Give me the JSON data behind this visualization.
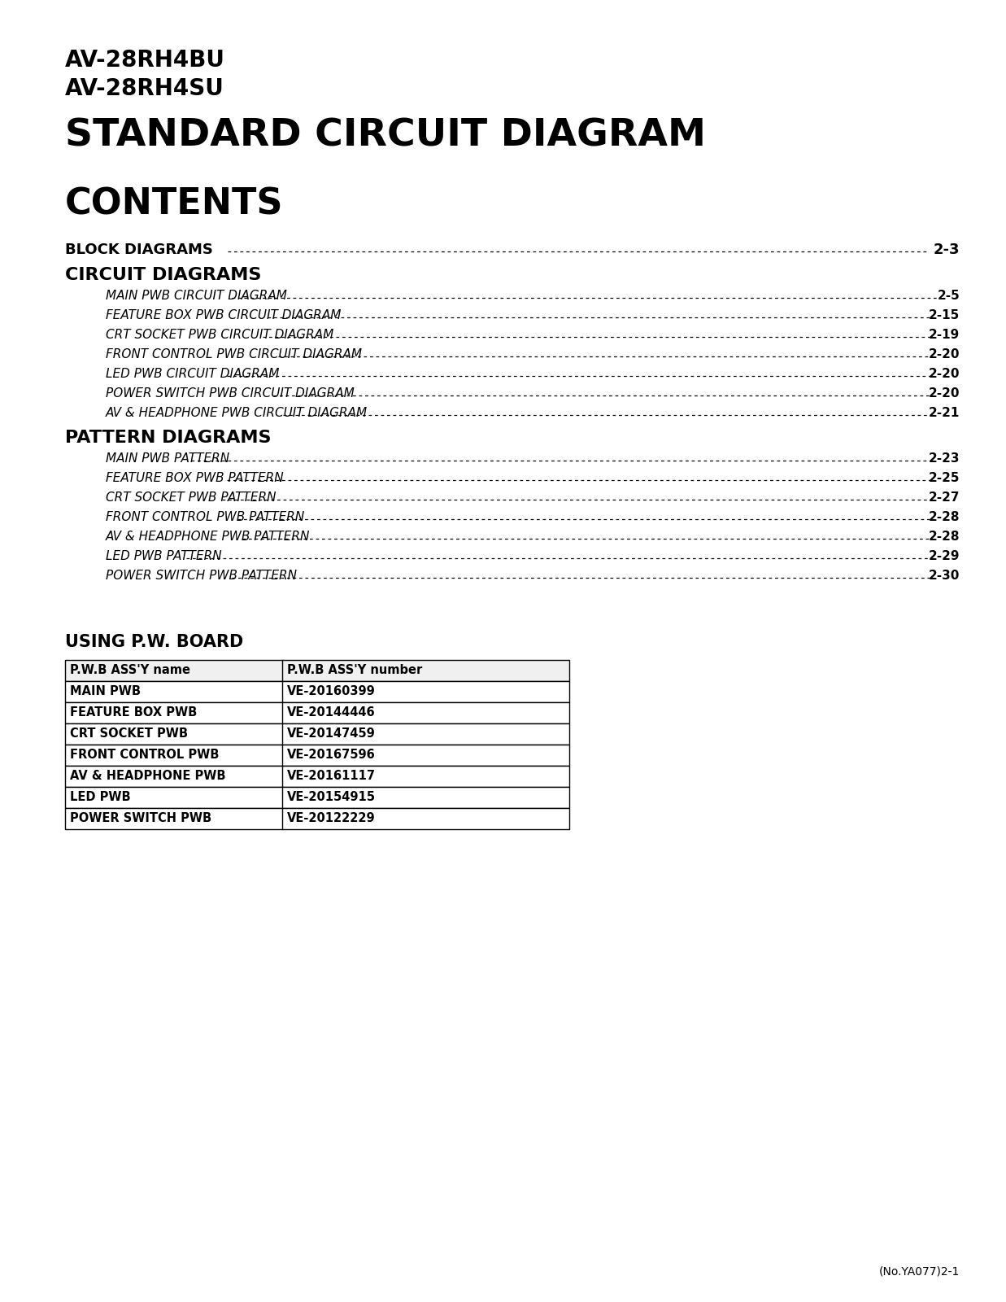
{
  "model_line1": "AV-28RH4BU",
  "model_line2": "AV-28RH4SU",
  "main_title": "STANDARD CIRCUIT DIAGRAM",
  "contents_title": "CONTENTS",
  "bg_color": "#ffffff",
  "text_color": "#000000",
  "block_diagrams": {
    "label": "BLOCK DIAGRAMS",
    "page": "2-3"
  },
  "circuit_items": [
    {
      "label": "MAIN PWB CIRCUIT DIAGRAM",
      "page": "2-5"
    },
    {
      "label": "FEATURE BOX PWB CIRCUIT DIAGRAM",
      "page": "2-15"
    },
    {
      "label": "CRT SOCKET PWB CIRCUIT DIAGRAM",
      "page": "2-19"
    },
    {
      "label": "FRONT CONTROL PWB CIRCUIT DIAGRAM",
      "page": "2-20"
    },
    {
      "label": "LED PWB CIRCUIT DIAGRAM",
      "page": "2-20"
    },
    {
      "label": "POWER SWITCH PWB CIRCUIT DIAGRAM",
      "page": "2-20"
    },
    {
      "label": "AV & HEADPHONE PWB CIRCUIT DIAGRAM",
      "page": "2-21"
    }
  ],
  "pattern_items": [
    {
      "label": "MAIN PWB PATTERN",
      "page": "2-23"
    },
    {
      "label": "FEATURE BOX PWB PATTERN",
      "page": "2-25"
    },
    {
      "label": "CRT SOCKET PWB PATTERN",
      "page": "2-27"
    },
    {
      "label": "FRONT CONTROL PWB PATTERN",
      "page": "2-28"
    },
    {
      "label": "AV & HEADPHONE PWB PATTERN",
      "page": "2-28"
    },
    {
      "label": "LED PWB PATTERN",
      "page": "2-29"
    },
    {
      "label": "POWER SWITCH PWB PATTERN",
      "page": "2-30"
    }
  ],
  "using_heading": "USING P.W. BOARD",
  "col1_header": "P.W.B ASS'Y name",
  "col2_header": "P.W.B ASS'Y number",
  "table_rows": [
    [
      "MAIN PWB",
      "VE-20160399"
    ],
    [
      "FEATURE BOX PWB",
      "VE-20144446"
    ],
    [
      "CRT SOCKET PWB",
      "VE-20147459"
    ],
    [
      "FRONT CONTROL PWB",
      "VE-20167596"
    ],
    [
      "AV & HEADPHONE PWB",
      "VE-20161117"
    ],
    [
      "LED PWB",
      "VE-20154915"
    ],
    [
      "POWER SWITCH PWB",
      "VE-20122229"
    ]
  ],
  "footer": "(No.YA077)2-1"
}
